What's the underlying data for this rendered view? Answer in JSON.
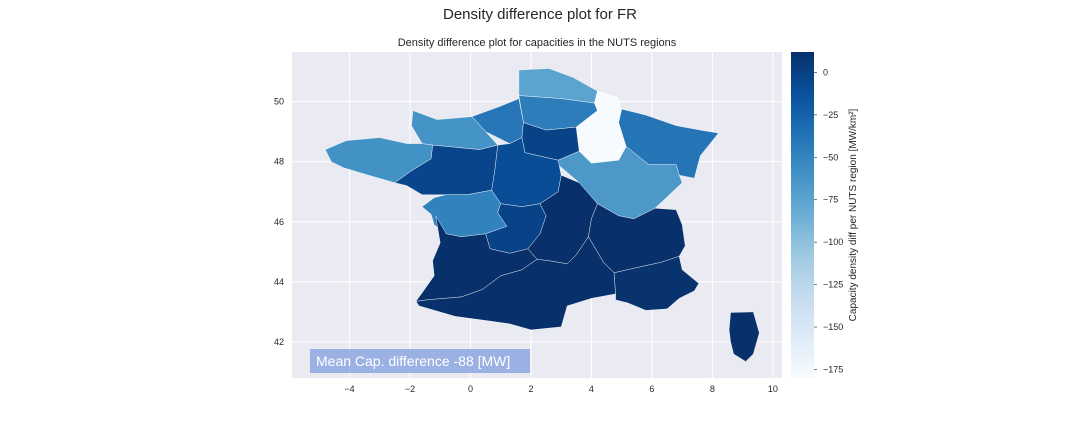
{
  "chart_data": {
    "type": "choropleth",
    "suptitle": "Density difference plot for FR",
    "title": "Density difference plot for capacities in the NUTS regions",
    "xlim": [
      -5.9,
      10.3
    ],
    "ylim": [
      40.8,
      51.65
    ],
    "xticks": [
      -4,
      -2,
      0,
      2,
      4,
      6,
      8,
      10
    ],
    "yticks": [
      42,
      44,
      46,
      48,
      50
    ],
    "xtick_labels": [
      "−4",
      "−2",
      "0",
      "2",
      "4",
      "6",
      "8",
      "10"
    ],
    "ytick_labels": [
      "42",
      "44",
      "46",
      "48",
      "50"
    ],
    "grid": true,
    "colormap": {
      "name": "Blues",
      "min": -180,
      "max": 12,
      "stops": [
        "#f7fbff",
        "#deebf7",
        "#c6dbef",
        "#9ecae1",
        "#6baed6",
        "#4292c6",
        "#2171b5",
        "#08519c",
        "#08306b"
      ]
    },
    "colorbar": {
      "label": "Capacity density diff per NUTS region [MW/km²]",
      "ticks": [
        0,
        -25,
        -50,
        -75,
        -100,
        -125,
        -150,
        -175
      ],
      "tick_labels": [
        "0",
        "−25",
        "−50",
        "−75",
        "−100",
        "−125",
        "−150",
        "−175"
      ]
    },
    "regions": [
      {
        "value": -75,
        "points": [
          [
            1.6,
            51.05
          ],
          [
            2.6,
            51.1
          ],
          [
            3.4,
            50.8
          ],
          [
            4.2,
            50.35
          ],
          [
            4.1,
            49.95
          ],
          [
            3.0,
            50.1
          ],
          [
            1.6,
            50.2
          ]
        ]
      },
      {
        "value": -45,
        "points": [
          [
            1.6,
            50.2
          ],
          [
            3.0,
            50.1
          ],
          [
            4.1,
            49.95
          ],
          [
            4.2,
            49.7
          ],
          [
            3.5,
            49.15
          ],
          [
            2.5,
            49.05
          ],
          [
            1.75,
            49.3
          ]
        ]
      },
      {
        "value": -40,
        "points": [
          [
            0.05,
            49.5
          ],
          [
            1.0,
            49.85
          ],
          [
            1.6,
            50.1
          ],
          [
            1.75,
            49.3
          ],
          [
            1.7,
            48.8
          ],
          [
            1.3,
            48.6
          ],
          [
            0.5,
            49.0
          ]
        ]
      },
      {
        "value": -62,
        "points": [
          [
            -1.9,
            49.7
          ],
          [
            -1.1,
            49.4
          ],
          [
            0.05,
            49.5
          ],
          [
            0.5,
            49.0
          ],
          [
            0.9,
            48.55
          ],
          [
            0.3,
            48.4
          ],
          [
            -1.25,
            48.55
          ],
          [
            -1.6,
            48.6
          ],
          [
            -1.95,
            49.2
          ]
        ]
      },
      {
        "value": -2,
        "points": [
          [
            1.75,
            49.3
          ],
          [
            2.5,
            49.05
          ],
          [
            3.5,
            49.15
          ],
          [
            3.6,
            48.35
          ],
          [
            2.9,
            48.05
          ],
          [
            1.8,
            48.3
          ],
          [
            1.7,
            48.8
          ]
        ]
      },
      {
        "value": -180,
        "points": [
          [
            4.2,
            50.35
          ],
          [
            4.85,
            50.15
          ],
          [
            5.0,
            49.75
          ],
          [
            4.9,
            49.3
          ],
          [
            5.15,
            48.5
          ],
          [
            4.9,
            48.05
          ],
          [
            4.0,
            47.95
          ],
          [
            3.6,
            48.35
          ],
          [
            3.5,
            49.15
          ],
          [
            4.2,
            49.7
          ],
          [
            4.1,
            49.95
          ]
        ]
      },
      {
        "value": -38,
        "points": [
          [
            5.0,
            49.75
          ],
          [
            5.8,
            49.55
          ],
          [
            6.8,
            49.2
          ],
          [
            7.6,
            49.05
          ],
          [
            8.2,
            48.95
          ],
          [
            7.6,
            48.2
          ],
          [
            7.4,
            47.45
          ],
          [
            6.9,
            47.55
          ],
          [
            6.8,
            47.9
          ],
          [
            5.9,
            47.9
          ],
          [
            5.15,
            48.5
          ],
          [
            4.9,
            49.3
          ]
        ]
      },
      {
        "value": -65,
        "points": [
          [
            4.0,
            47.95
          ],
          [
            4.9,
            48.05
          ],
          [
            5.15,
            48.5
          ],
          [
            5.9,
            47.9
          ],
          [
            6.8,
            47.9
          ],
          [
            6.9,
            47.55
          ],
          [
            7.0,
            47.3
          ],
          [
            6.1,
            46.45
          ],
          [
            5.4,
            46.1
          ],
          [
            4.9,
            46.2
          ],
          [
            4.2,
            46.6
          ],
          [
            3.6,
            47.3
          ],
          [
            2.9,
            47.9
          ],
          [
            2.9,
            48.05
          ],
          [
            3.6,
            48.35
          ]
        ]
      },
      {
        "value": -9,
        "points": [
          [
            1.8,
            48.3
          ],
          [
            2.9,
            48.05
          ],
          [
            3.0,
            47.55
          ],
          [
            2.9,
            47.0
          ],
          [
            2.3,
            46.6
          ],
          [
            1.7,
            46.5
          ],
          [
            1.0,
            46.6
          ],
          [
            0.7,
            47.05
          ],
          [
            0.8,
            47.7
          ],
          [
            0.9,
            48.55
          ],
          [
            1.3,
            48.6
          ],
          [
            1.7,
            48.8
          ]
        ]
      },
      {
        "value": -3,
        "points": [
          [
            -1.25,
            48.55
          ],
          [
            0.3,
            48.4
          ],
          [
            0.9,
            48.55
          ],
          [
            0.8,
            47.7
          ],
          [
            0.7,
            47.05
          ],
          [
            -0.1,
            46.9
          ],
          [
            -0.8,
            46.9
          ],
          [
            -1.6,
            46.9
          ],
          [
            -2.1,
            47.2
          ],
          [
            -2.5,
            47.3
          ],
          [
            -1.95,
            47.7
          ],
          [
            -1.3,
            48.1
          ]
        ]
      },
      {
        "value": -60,
        "points": [
          [
            -4.8,
            48.4
          ],
          [
            -4.1,
            48.7
          ],
          [
            -3.0,
            48.8
          ],
          [
            -2.1,
            48.6
          ],
          [
            -1.6,
            48.6
          ],
          [
            -1.25,
            48.55
          ],
          [
            -1.3,
            48.1
          ],
          [
            -1.95,
            47.7
          ],
          [
            -2.5,
            47.3
          ],
          [
            -3.2,
            47.5
          ],
          [
            -4.2,
            47.8
          ],
          [
            -4.6,
            48.0
          ]
        ]
      },
      {
        "value": -48,
        "points": [
          [
            -0.8,
            46.9
          ],
          [
            -0.1,
            46.9
          ],
          [
            0.7,
            47.05
          ],
          [
            1.0,
            46.6
          ],
          [
            0.9,
            46.3
          ],
          [
            1.2,
            45.85
          ],
          [
            0.5,
            45.6
          ],
          [
            -0.3,
            45.5
          ],
          [
            -0.8,
            45.6
          ],
          [
            -1.2,
            45.9
          ],
          [
            -1.3,
            46.25
          ],
          [
            -1.6,
            46.5
          ],
          [
            -1.2,
            46.8
          ]
        ]
      },
      {
        "value": -2,
        "points": [
          [
            1.0,
            46.6
          ],
          [
            1.7,
            46.5
          ],
          [
            2.3,
            46.6
          ],
          [
            2.5,
            46.2
          ],
          [
            2.3,
            45.6
          ],
          [
            1.9,
            45.1
          ],
          [
            1.3,
            44.95
          ],
          [
            0.65,
            45.1
          ],
          [
            0.5,
            45.6
          ],
          [
            1.2,
            45.85
          ],
          [
            0.9,
            46.3
          ]
        ]
      },
      {
        "value": 12,
        "points": [
          [
            2.3,
            46.6
          ],
          [
            2.9,
            47.0
          ],
          [
            3.0,
            47.55
          ],
          [
            3.6,
            47.3
          ],
          [
            4.2,
            46.6
          ],
          [
            4.0,
            46.1
          ],
          [
            3.9,
            45.5
          ],
          [
            3.5,
            44.9
          ],
          [
            3.2,
            44.6
          ],
          [
            2.6,
            44.7
          ],
          [
            2.2,
            44.75
          ],
          [
            1.9,
            45.1
          ],
          [
            2.3,
            45.6
          ],
          [
            2.5,
            46.2
          ]
        ]
      },
      {
        "value": 12,
        "points": [
          [
            4.2,
            46.6
          ],
          [
            4.9,
            46.2
          ],
          [
            5.4,
            46.1
          ],
          [
            6.1,
            46.45
          ],
          [
            6.8,
            46.4
          ],
          [
            7.0,
            45.9
          ],
          [
            7.1,
            45.2
          ],
          [
            6.9,
            44.85
          ],
          [
            6.3,
            44.65
          ],
          [
            5.4,
            44.45
          ],
          [
            4.75,
            44.3
          ],
          [
            4.4,
            44.65
          ],
          [
            3.9,
            45.5
          ],
          [
            4.0,
            46.1
          ]
        ]
      },
      {
        "value": 12,
        "points": [
          [
            -1.15,
            46.2
          ],
          [
            -0.8,
            45.6
          ],
          [
            -0.3,
            45.5
          ],
          [
            0.5,
            45.6
          ],
          [
            0.65,
            45.1
          ],
          [
            1.3,
            44.95
          ],
          [
            1.9,
            45.1
          ],
          [
            2.2,
            44.75
          ],
          [
            1.7,
            44.4
          ],
          [
            1.0,
            44.2
          ],
          [
            0.4,
            43.75
          ],
          [
            -0.3,
            43.5
          ],
          [
            -1.45,
            43.4
          ],
          [
            -1.8,
            43.35
          ],
          [
            -1.2,
            44.2
          ],
          [
            -1.25,
            44.7
          ],
          [
            -1.0,
            45.3
          ]
        ]
      },
      {
        "value": 12,
        "points": [
          [
            -1.8,
            43.35
          ],
          [
            -1.45,
            43.4
          ],
          [
            -0.3,
            43.5
          ],
          [
            0.4,
            43.75
          ],
          [
            1.0,
            44.2
          ],
          [
            1.7,
            44.4
          ],
          [
            2.2,
            44.75
          ],
          [
            2.6,
            44.7
          ],
          [
            3.2,
            44.6
          ],
          [
            3.5,
            44.9
          ],
          [
            3.9,
            45.5
          ],
          [
            4.4,
            44.65
          ],
          [
            4.75,
            44.3
          ],
          [
            4.8,
            43.6
          ],
          [
            4.0,
            43.45
          ],
          [
            3.2,
            43.2
          ],
          [
            3.0,
            42.5
          ],
          [
            2.0,
            42.4
          ],
          [
            1.3,
            42.6
          ],
          [
            0.6,
            42.7
          ],
          [
            -0.5,
            42.85
          ],
          [
            -1.7,
            43.2
          ]
        ]
      },
      {
        "value": 10,
        "points": [
          [
            4.75,
            44.3
          ],
          [
            5.4,
            44.45
          ],
          [
            6.3,
            44.65
          ],
          [
            6.9,
            44.85
          ],
          [
            7.0,
            44.4
          ],
          [
            7.55,
            43.95
          ],
          [
            7.4,
            43.7
          ],
          [
            6.9,
            43.45
          ],
          [
            6.5,
            43.1
          ],
          [
            5.8,
            43.05
          ],
          [
            5.2,
            43.3
          ],
          [
            4.8,
            43.4
          ],
          [
            4.8,
            43.6
          ]
        ]
      },
      {
        "value": 12,
        "points": [
          [
            8.6,
            42.98
          ],
          [
            9.35,
            43.0
          ],
          [
            9.55,
            42.3
          ],
          [
            9.35,
            41.6
          ],
          [
            9.1,
            41.35
          ],
          [
            8.7,
            41.6
          ],
          [
            8.6,
            42.0
          ],
          [
            8.55,
            42.4
          ]
        ]
      }
    ],
    "annotation": "Mean Cap. difference -88 [MW]"
  }
}
